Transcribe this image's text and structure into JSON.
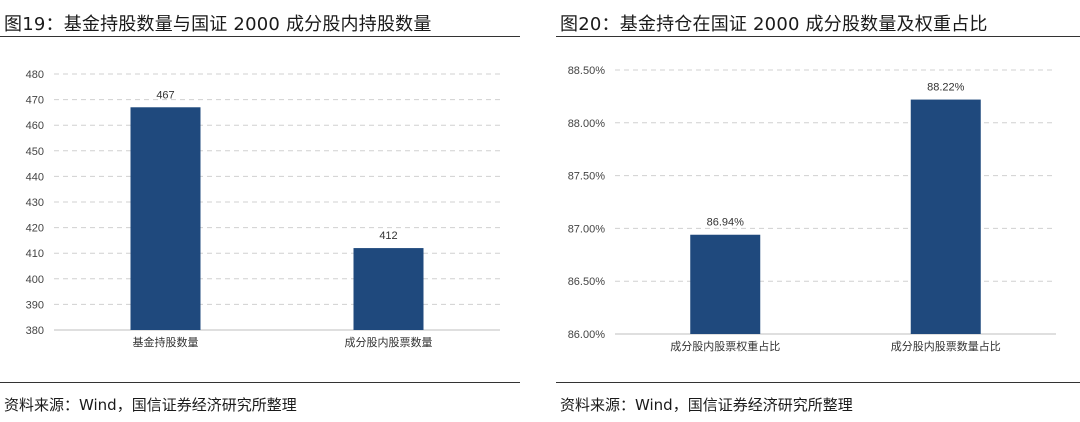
{
  "charts": [
    {
      "id": "left",
      "figure_title": "图19：基金持股数量与国证 2000 成分股内持股数量",
      "source": "资料来源：Wind，国信证券经济研究所整理",
      "tick_labels": [
        "380",
        "390",
        "400",
        "410",
        "420",
        "430",
        "440",
        "450",
        "460",
        "470",
        "480"
      ],
      "bar_labels": [
        "467",
        "412"
      ]
    },
    {
      "id": "right",
      "figure_title": "图20：基金持仓在国证 2000 成分股数量及权重占比",
      "source": "资料来源：Wind，国信证券经济研究所整理",
      "tick_labels": [
        "86.00%",
        "86.50%",
        "87.00%",
        "87.50%",
        "88.00%",
        "88.50%"
      ],
      "bar_labels": [
        "86.94%",
        "88.22%"
      ]
    }
  ],
  "chart_data": [
    {
      "type": "bar",
      "title": "图19：基金持股数量与国证 2000 成分股内持股数量",
      "categories": [
        "基金持股数量",
        "成分股内股票数量"
      ],
      "values": [
        467,
        412
      ],
      "xlabel": "",
      "ylabel": "",
      "ylim": [
        380,
        480
      ],
      "yticks": [
        380,
        390,
        400,
        410,
        420,
        430,
        440,
        450,
        460,
        470,
        480
      ],
      "grid": true,
      "legend": "none",
      "bar_color": "#1F497D"
    },
    {
      "type": "bar",
      "title": "图20：基金持仓在国证 2000 成分股数量及权重占比",
      "categories": [
        "成分股内股票权重占比",
        "成分股内股票数量占比"
      ],
      "values": [
        86.94,
        88.22
      ],
      "value_unit": "%",
      "xlabel": "",
      "ylabel": "",
      "ylim": [
        86.0,
        88.5
      ],
      "yticks": [
        86.0,
        86.5,
        87.0,
        87.5,
        88.0,
        88.5
      ],
      "grid": true,
      "legend": "none",
      "bar_color": "#1F497D"
    }
  ]
}
